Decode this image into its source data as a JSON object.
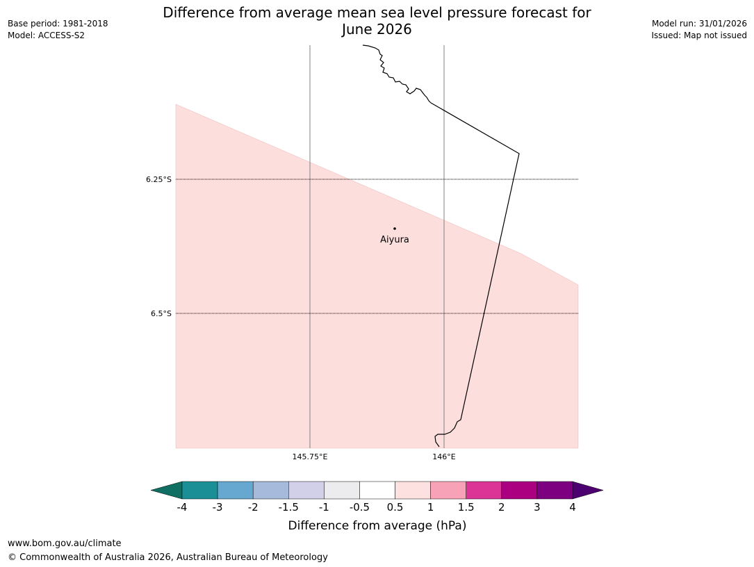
{
  "header": {
    "title_line1": "Difference from average mean sea level pressure forecast for",
    "title_line2": "June 2026",
    "base_period": "Base period: 1981-2018",
    "model": "Model: ACCESS-S2",
    "model_run": "Model run: 31/01/2026",
    "issued": "Issued: Map not issued"
  },
  "map": {
    "lat_labels": [
      "6.25°S",
      "6.5°S"
    ],
    "lon_labels": [
      "145.75°E",
      "146°E"
    ],
    "place": {
      "name": "Aiyura"
    },
    "anomaly_fill_color": "#fcdedd"
  },
  "colorbar": {
    "label": "Difference from average (hPa)",
    "ticks": [
      "-4",
      "-3",
      "-2",
      "-1.5",
      "-1",
      "-0.5",
      "0.5",
      "1",
      "1.5",
      "2",
      "3",
      "4"
    ],
    "colors": [
      "#1a8f96",
      "#67a8d0",
      "#a6bbdc",
      "#d1d0e8",
      "#ecebee",
      "#ffffff",
      "#fde1e1",
      "#f8a2b7",
      "#dc3397",
      "#ab007f",
      "#7d0080"
    ],
    "extend_low_color": "#0f6f62",
    "extend_high_color": "#4d0070"
  },
  "footer": {
    "url": "www.bom.gov.au/climate",
    "copyright": "© Commonwealth of Australia 2026, Australian Bureau of Meteorology"
  }
}
